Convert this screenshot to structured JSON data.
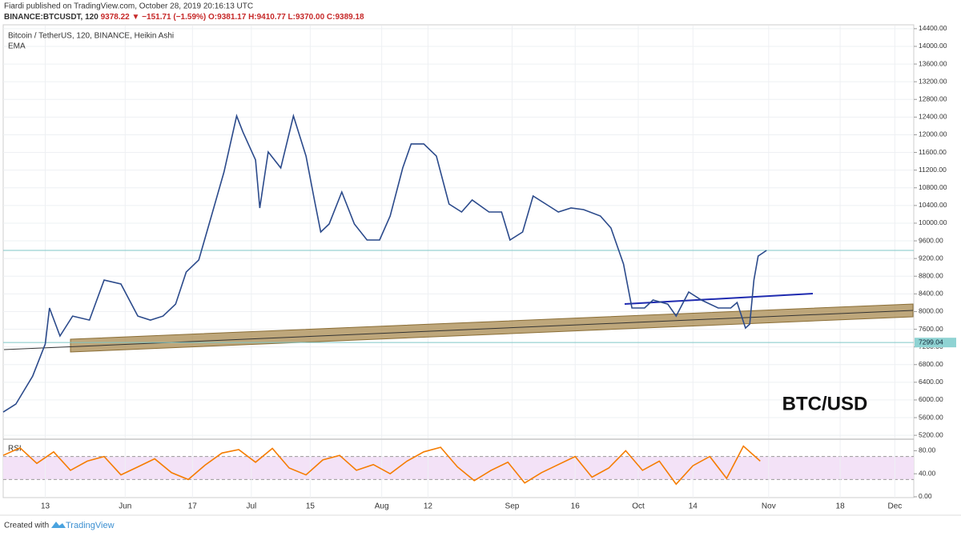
{
  "header": {
    "published": "Fiardi published on TradingView.com, October 28, 2019 20:16:13 UTC",
    "symbol": "BINANCE:BTCUSDT, 120",
    "change": "9378.22 ▼ −151.71 (−1.59%)",
    "ohlc": "O:9381.17 H:9410.77 L:9370.00 C:9389.18"
  },
  "footer": {
    "text": "Created with",
    "brand": "TradingView"
  },
  "chart_data": [
    {
      "type": "line",
      "title": "Bitcoin / TetherUS, 120, BINANCE, Heikin Ashi",
      "annotation": "BTC/USD",
      "marker_price": 7299.04,
      "x": [
        123,
        126,
        130,
        133,
        134,
        136.5,
        139.5,
        143.5,
        147,
        151,
        155,
        158,
        161,
        164,
        166.5,
        169.5,
        172.5,
        175.5,
        178.5,
        180,
        183,
        184,
        186,
        189,
        192,
        195,
        197,
        198.5,
        200.5,
        203.5,
        206.5,
        209.5,
        212.5,
        215,
        218,
        220,
        223,
        226,
        229,
        232,
        234.5,
        238.5,
        241.5,
        243.5,
        246.5,
        249,
        252,
        255,
        258,
        261,
        265,
        267.5,
        270.5,
        272.5,
        275.5,
        277.5,
        281,
        283,
        286,
        289,
        293,
        296,
        297.5,
        299.5,
        300.5,
        301.5,
        302.5,
        304.5
      ],
      "series": [
        {
          "name": "EMA",
          "color": "#2b4a8b",
          "values": [
            5725,
            5906,
            6540,
            7265,
            8080,
            7446,
            7898,
            7808,
            8713,
            8623,
            7898,
            7808,
            7898,
            8170,
            8894,
            9166,
            10162,
            11158,
            12426,
            12064,
            11430,
            10343,
            11611,
            11249,
            12426,
            11520,
            10524,
            9800,
            9981,
            10705,
            9981,
            9619,
            9619,
            10162,
            11249,
            11792,
            11792,
            11520,
            10434,
            10253,
            10524,
            10253,
            10253,
            9619,
            9800,
            10615,
            10434,
            10253,
            10343,
            10307,
            10162,
            9890,
            9075,
            8080,
            8080,
            8261,
            8170,
            7898,
            8442,
            8261,
            8080,
            8080,
            8206,
            7627,
            7717,
            8713,
            9256,
            9383
          ]
        }
      ],
      "xlim": [
        123,
        339.5
      ],
      "xticks": [
        {
          "value": 133,
          "label": "13"
        },
        {
          "value": 152,
          "label": "Jun"
        },
        {
          "value": 168,
          "label": "17"
        },
        {
          "value": 182,
          "label": "Jul"
        },
        {
          "value": 196,
          "label": "15"
        },
        {
          "value": 213,
          "label": "Aug"
        },
        {
          "value": 224,
          "label": "12"
        },
        {
          "value": 244,
          "label": "Sep"
        },
        {
          "value": 259,
          "label": "16"
        },
        {
          "value": 274,
          "label": "Oct"
        },
        {
          "value": 287,
          "label": "14"
        },
        {
          "value": 305,
          "label": "Nov"
        },
        {
          "value": 322,
          "label": "18"
        },
        {
          "value": 335,
          "label": "Dec"
        }
      ],
      "ylim": [
        5130,
        14470
      ],
      "yticks": [
        {
          "value": 5200,
          "label": "5200.00"
        },
        {
          "value": 5600,
          "label": "5600.00"
        },
        {
          "value": 6000,
          "label": "6000.00"
        },
        {
          "value": 6400,
          "label": "6400.00"
        },
        {
          "value": 6800,
          "label": "6800.00"
        },
        {
          "value": 7200,
          "label": "7200.00"
        },
        {
          "value": 7600,
          "label": "7600.00"
        },
        {
          "value": 8000,
          "label": "8000.00"
        },
        {
          "value": 8400,
          "label": "8400.00"
        },
        {
          "value": 8800,
          "label": "8800.00"
        },
        {
          "value": 9200,
          "label": "9200.00"
        },
        {
          "value": 9600,
          "label": "9600.00"
        },
        {
          "value": 10000,
          "label": "10000.00"
        },
        {
          "value": 10400,
          "label": "10400.00"
        },
        {
          "value": 10800,
          "label": "10800.00"
        },
        {
          "value": 11200,
          "label": "11200.00"
        },
        {
          "value": 11600,
          "label": "11600.00"
        },
        {
          "value": 12000,
          "label": "12000.00"
        },
        {
          "value": 12400,
          "label": "12400.00"
        },
        {
          "value": 12800,
          "label": "12800.00"
        },
        {
          "value": 13200,
          "label": "13200.00"
        },
        {
          "value": 13600,
          "label": "13600.00"
        },
        {
          "value": 14000,
          "label": "14000.00"
        },
        {
          "value": 14400,
          "label": "14400.00"
        }
      ],
      "grid": true
    },
    {
      "type": "line",
      "x": [
        123,
        127,
        131,
        135,
        139,
        143,
        147,
        151,
        155,
        159,
        163,
        167,
        171,
        175,
        179,
        183,
        187,
        191,
        195,
        199,
        203,
        207,
        211,
        215,
        219,
        223,
        227,
        231,
        235,
        239,
        243,
        247,
        251,
        255,
        259,
        263,
        267,
        271,
        275,
        279,
        283,
        287,
        291,
        295,
        299,
        303
      ],
      "series": [
        {
          "name": "RSI",
          "color": "#f57c00",
          "values": [
            72,
            85,
            58,
            78,
            46,
            62,
            70,
            38,
            52,
            66,
            42,
            30,
            55,
            76,
            82,
            60,
            84,
            50,
            38,
            64,
            72,
            46,
            56,
            40,
            62,
            78,
            86,
            52,
            28,
            46,
            60,
            24,
            42,
            56,
            70,
            34,
            50,
            80,
            46,
            62,
            22,
            54,
            70,
            32,
            88,
            62
          ]
        }
      ],
      "band": [
        30,
        70
      ],
      "band_color": "#f3e2f7",
      "xlim": [
        123,
        339.5
      ],
      "ylim": [
        -1.4,
        98.6
      ],
      "yticks": [
        {
          "value": 0,
          "label": "0.00"
        },
        {
          "value": 40,
          "label": "40.00"
        },
        {
          "value": 80,
          "label": "80.00"
        }
      ],
      "grid": true
    }
  ]
}
